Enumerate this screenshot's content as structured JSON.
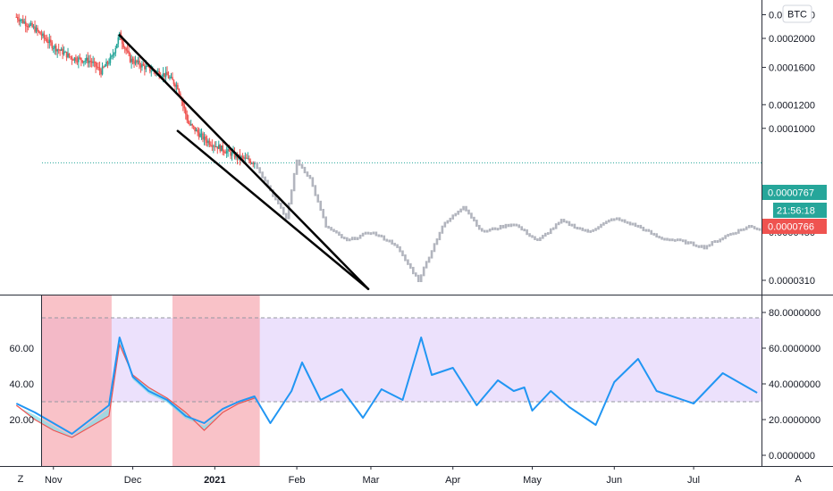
{
  "price_axis": {
    "currency_badge": "BTC",
    "ticks": [
      "0.0002400",
      "0.0002000",
      "0.0001600",
      "0.0001200",
      "0.0001000",
      "0.0000450",
      "0.0000310"
    ],
    "last_price_tag": "0.0000767",
    "countdown_tag": "21:56:18",
    "prev_price_tag": "0.0000766"
  },
  "osc_axis": {
    "right_ticks": [
      "80.0000000",
      "60.0000000",
      "40.0000000",
      "20.0000000",
      "0.0000000"
    ],
    "left_ticks": [
      "60.00",
      "40.00",
      "20.00"
    ]
  },
  "time_axis": {
    "labels": [
      "Nov",
      "Dec",
      "2021",
      "Feb",
      "Mar",
      "Apr",
      "May",
      "Jun",
      "Jul"
    ]
  },
  "corner_buttons": {
    "left": "Z",
    "right": "A"
  },
  "colors": {
    "up": "#26a69a",
    "down": "#ef5350",
    "projection": "#b2b5be",
    "rsi_line": "#2196f3",
    "band_fill": "#e9dcfb",
    "zone": "#f7a8b0",
    "trendline": "#000000",
    "last_price": "#26a69a",
    "prev_price": "#ef5350"
  },
  "chart_data": [
    {
      "type": "candlestick",
      "yscale": "log",
      "ylim": [
        2.8e-05,
        0.00025
      ],
      "x_labels": [
        "Nov",
        "Dec",
        "2021",
        "Feb",
        "Mar",
        "Apr",
        "May",
        "Jun",
        "Jul"
      ],
      "price_path": [
        [
          "Oct 18",
          0.000236
        ],
        [
          "Oct 25",
          0.000215
        ],
        [
          "Nov 1",
          0.000188
        ],
        [
          "Nov 8",
          0.000172
        ],
        [
          "Nov 15",
          0.000168
        ],
        [
          "Nov 19",
          0.000155
        ],
        [
          "Nov 23",
          0.000172
        ],
        [
          "Nov 26",
          0.000205
        ],
        [
          "Nov 30",
          0.00017
        ],
        [
          "Dec 7",
          0.000158
        ],
        [
          "Dec 14",
          0.00015
        ],
        [
          "Dec 18",
          0.000138
        ],
        [
          "Dec 22",
          0.000104
        ],
        [
          "Dec 28",
          9.2e-05
        ],
        [
          "Jan 4",
          8.5e-05
        ],
        [
          "Jan 10",
          8e-05
        ],
        [
          "Jan 16",
          7.7e-05
        ]
      ],
      "projection_path": [
        [
          "Jan 16",
          7.7e-05
        ],
        [
          "Jan 22",
          6.2e-05
        ],
        [
          "Jan 28",
          5e-05
        ],
        [
          "Feb 1",
          7.8e-05
        ],
        [
          "Feb 6",
          6.8e-05
        ],
        [
          "Feb 12",
          4.7e-05
        ],
        [
          "Feb 20",
          4.2e-05
        ],
        [
          "Mar 1",
          4.5e-05
        ],
        [
          "Mar 10",
          4.1e-05
        ],
        [
          "Mar 19",
          3.1e-05
        ],
        [
          "Mar 28",
          4.7e-05
        ],
        [
          "Apr 5",
          5.5e-05
        ],
        [
          "Apr 12",
          4.5e-05
        ],
        [
          "Apr 24",
          4.8e-05
        ],
        [
          "May 3",
          4.2e-05
        ],
        [
          "May 12",
          4.9e-05
        ],
        [
          "May 22",
          4.5e-05
        ],
        [
          "Jun 1",
          5e-05
        ],
        [
          "Jun 10",
          4.7e-05
        ],
        [
          "Jun 18",
          4.3e-05
        ],
        [
          "Jun 26",
          4.2e-05
        ],
        [
          "Jul 5",
          4e-05
        ],
        [
          "Jul 14",
          4.4e-05
        ],
        [
          "Jul 22",
          4.7e-05
        ],
        [
          "Jul 26",
          4.6e-05
        ]
      ],
      "wedge_lines": [
        [
          [
            "Nov 26",
            0.000205
          ],
          [
            "Feb 28",
            2.9e-05
          ]
        ],
        [
          [
            "Dec 18",
            9.8e-05
          ],
          [
            "Feb 28",
            2.9e-05
          ]
        ]
      ],
      "last_price": 7.67e-05,
      "prev_price": 7.66e-05
    },
    {
      "type": "line",
      "ylim": [
        0,
        80
      ],
      "band": [
        30,
        77
      ],
      "rsi": [
        [
          "Oct 18",
          29
        ],
        [
          "Oct 25",
          24
        ],
        [
          "Nov 1",
          18
        ],
        [
          "Nov 8",
          12
        ],
        [
          "Nov 15",
          20
        ],
        [
          "Nov 22",
          28
        ],
        [
          "Nov 26",
          66
        ],
        [
          "Dec 1",
          44
        ],
        [
          "Dec 7",
          36
        ],
        [
          "Dec 14",
          31
        ],
        [
          "Dec 21",
          22
        ],
        [
          "Dec 28",
          18
        ],
        [
          "Jan 4",
          26
        ],
        [
          "Jan 10",
          30
        ],
        [
          "Jan 16",
          33
        ],
        [
          "Jan 22",
          18
        ],
        [
          "Jan 30",
          36
        ],
        [
          "Feb 3",
          52
        ],
        [
          "Feb 10",
          31
        ],
        [
          "Feb 18",
          37
        ],
        [
          "Feb 26",
          21
        ],
        [
          "Mar 5",
          37
        ],
        [
          "Mar 13",
          31
        ],
        [
          "Mar 20",
          66
        ],
        [
          "Mar 24",
          45
        ],
        [
          "Apr 1",
          49
        ],
        [
          "Apr 10",
          28
        ],
        [
          "Apr 18",
          42
        ],
        [
          "Apr 24",
          36
        ],
        [
          "Apr 28",
          38
        ],
        [
          "May 1",
          25
        ],
        [
          "May 8",
          36
        ],
        [
          "May 15",
          27
        ],
        [
          "May 25",
          17
        ],
        [
          "Jun 1",
          41
        ],
        [
          "Jun 10",
          54
        ],
        [
          "Jun 17",
          36
        ],
        [
          "Jul 1",
          29
        ],
        [
          "Jul 12",
          46
        ],
        [
          "Jul 25",
          35
        ]
      ],
      "fill_series": [
        [
          "Oct 18",
          28
        ],
        [
          "Oct 25",
          20
        ],
        [
          "Nov 1",
          14
        ],
        [
          "Nov 8",
          10
        ],
        [
          "Nov 15",
          16
        ],
        [
          "Nov 22",
          22
        ],
        [
          "Nov 26",
          62
        ],
        [
          "Dec 1",
          45
        ],
        [
          "Dec 7",
          38
        ],
        [
          "Dec 14",
          32
        ],
        [
          "Dec 21",
          24
        ],
        [
          "Dec 28",
          14
        ],
        [
          "Jan 4",
          24
        ],
        [
          "Jan 10",
          29
        ],
        [
          "Jan 16",
          32
        ]
      ],
      "shaded_zones": [
        [
          "Oct 16",
          "Nov 23"
        ],
        [
          "Dec 16",
          "Jan 18"
        ]
      ]
    }
  ]
}
